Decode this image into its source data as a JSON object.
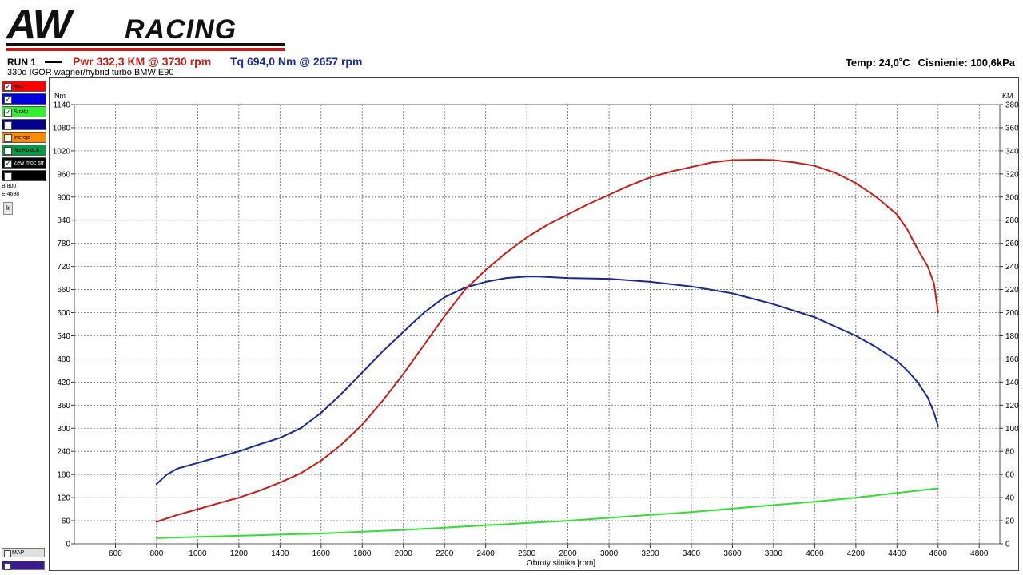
{
  "logo": {
    "text": "AWRACING"
  },
  "header": {
    "run_label": "RUN 1",
    "pwr": "Pwr  332,3 KM @ 3730 rpm",
    "tq": "Tq 694,0 Nm @ 2657 rpm",
    "temp": "Temp: 24,0˚C",
    "pressure": "Cisnienie: 100,6kPa",
    "subtitle": "330d  IGOR  wagner/hybrid turbo BMW E90"
  },
  "legend": [
    {
      "label": "Moc",
      "color": "#ff0000",
      "checked": true
    },
    {
      "label": "",
      "color": "#0000dd",
      "checked": true
    },
    {
      "label": "Straty",
      "color": "#33ee33",
      "checked": true
    },
    {
      "label": "",
      "color": "#000088",
      "checked": false
    },
    {
      "label": "Inercja",
      "color": "#ff8c00",
      "checked": false
    },
    {
      "label": "Na Kolach",
      "color": "#009944",
      "checked": false
    },
    {
      "label": "Zew moc str",
      "color": "#000000",
      "checked": true
    },
    {
      "label": "",
      "color": "#000000",
      "checked": false
    }
  ],
  "side": {
    "b": "B:800",
    "e": "E:4698",
    "k_button": "k"
  },
  "bottom_legend": [
    {
      "label": "MAP",
      "color": "#e0e0e0"
    },
    {
      "label": "",
      "color": "#3a1a8c"
    }
  ],
  "chart_data": {
    "type": "line",
    "xlabel": "Obroty silnika [rpm]",
    "ylabel_left": "Nm",
    "ylabel_right": "KM",
    "xlim": [
      400,
      4900
    ],
    "ylim_left": [
      0,
      1140
    ],
    "ylim_right": [
      0,
      380
    ],
    "x_ticks": [
      600,
      800,
      1000,
      1200,
      1400,
      1600,
      1800,
      2000,
      2200,
      2400,
      2600,
      2800,
      3000,
      3200,
      3400,
      3600,
      3800,
      4000,
      4200,
      4400,
      4600,
      4800
    ],
    "y_ticks_left": [
      0,
      60,
      120,
      180,
      240,
      300,
      360,
      420,
      480,
      540,
      600,
      660,
      720,
      780,
      840,
      900,
      960,
      1020,
      1080,
      1140
    ],
    "y_ticks_right": [
      0,
      20,
      40,
      60,
      80,
      100,
      120,
      140,
      160,
      180,
      200,
      220,
      240,
      260,
      280,
      300,
      320,
      340,
      360,
      380
    ],
    "grid": true,
    "series": [
      {
        "axis": "left",
        "color": "#1a2a8c",
        "x": [
          800,
          850,
          900,
          1000,
          1100,
          1200,
          1300,
          1400,
          1500,
          1600,
          1700,
          1800,
          1900,
          2000,
          2100,
          2200,
          2300,
          2400,
          2500,
          2600,
          2657,
          2800,
          3000,
          3200,
          3400,
          3600,
          3800,
          4000,
          4200,
          4300,
          4400,
          4450,
          4500,
          4550,
          4580,
          4600
        ],
        "y": [
          155,
          180,
          195,
          210,
          225,
          240,
          258,
          275,
          300,
          340,
          390,
          445,
          500,
          550,
          600,
          640,
          665,
          680,
          690,
          694,
          694,
          690,
          688,
          680,
          668,
          650,
          622,
          588,
          540,
          510,
          475,
          450,
          420,
          380,
          340,
          305
        ]
      },
      {
        "axis": "right",
        "color": "#c0201c",
        "x": [
          800,
          900,
          1000,
          1100,
          1200,
          1300,
          1400,
          1500,
          1600,
          1700,
          1800,
          1900,
          2000,
          2100,
          2200,
          2300,
          2400,
          2500,
          2600,
          2700,
          2800,
          2900,
          3000,
          3100,
          3200,
          3300,
          3400,
          3500,
          3600,
          3730,
          3800,
          3900,
          4000,
          4100,
          4200,
          4300,
          4400,
          4450,
          4500,
          4550,
          4580,
          4600
        ],
        "y": [
          19,
          25,
          30,
          35,
          40,
          46,
          53,
          61,
          72,
          86,
          103,
          124,
          147,
          172,
          197,
          220,
          237,
          252,
          265,
          276,
          285,
          294,
          302,
          310,
          317,
          322,
          326,
          330,
          332,
          332.3,
          332,
          330,
          327,
          321,
          312,
          300,
          285,
          272,
          255,
          240,
          225,
          200
        ]
      },
      {
        "axis": "right",
        "color": "#33dd33",
        "x": [
          800,
          1000,
          1200,
          1400,
          1600,
          1800,
          2000,
          2200,
          2400,
          2600,
          2800,
          3000,
          3200,
          3400,
          3600,
          3800,
          4000,
          4200,
          4400,
          4600
        ],
        "y": [
          5,
          6,
          7,
          8,
          9,
          10.5,
          12,
          14,
          16,
          18,
          20,
          22.5,
          25,
          27.5,
          30.5,
          33.5,
          36.5,
          40,
          44,
          48
        ]
      }
    ]
  }
}
